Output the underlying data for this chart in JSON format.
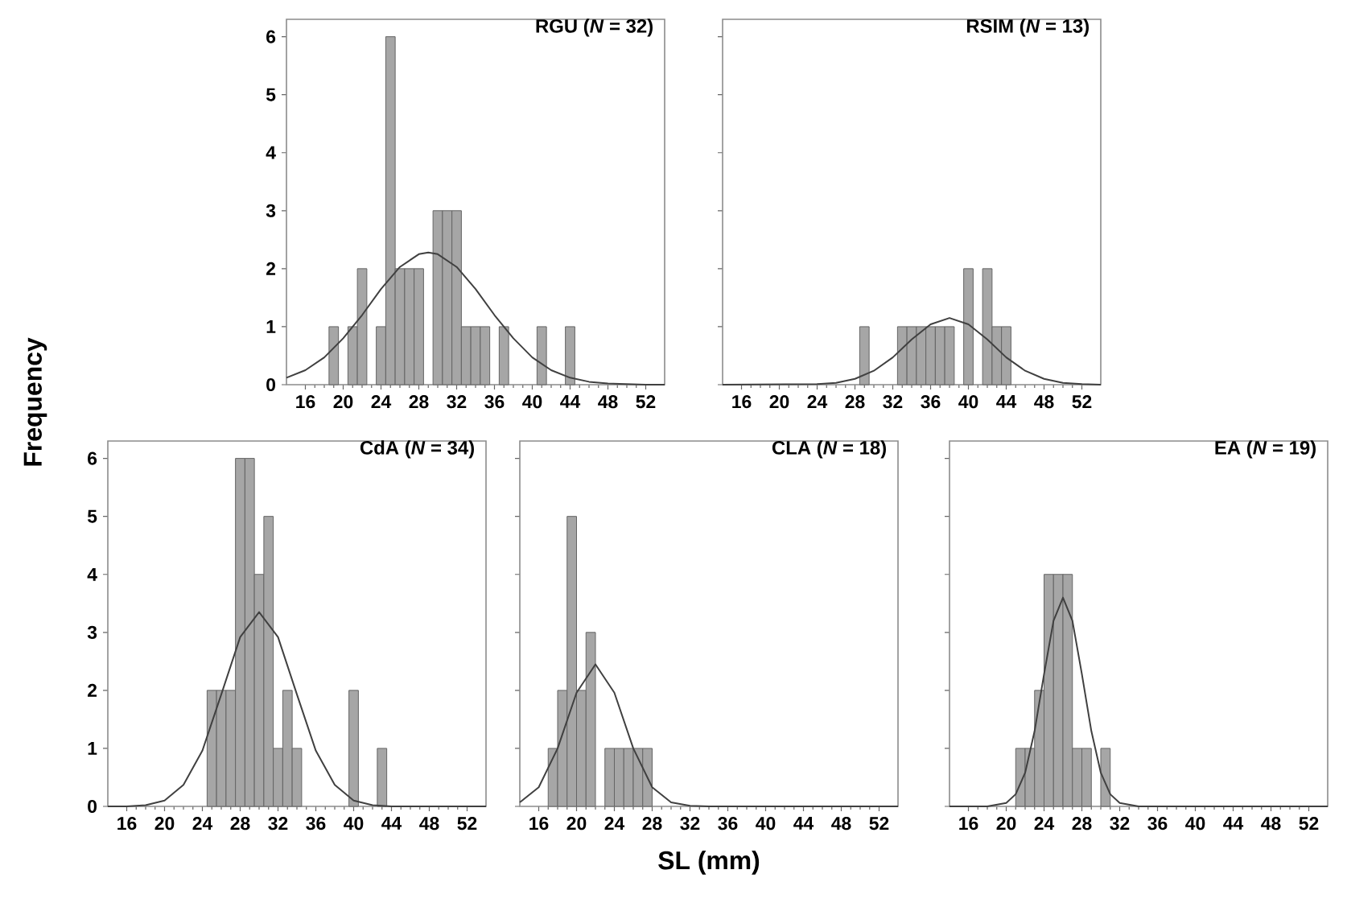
{
  "chart_data": [
    {
      "type": "histogram",
      "title": "RGU (*N* = 32)",
      "bins": [
        18.5,
        19.5,
        20.5,
        21.5,
        22.5,
        23.5,
        24.5,
        25.5,
        26.5,
        27.5,
        28.5,
        29.5,
        30.5,
        31.5,
        32.5,
        33.5,
        34.5,
        35.5,
        36.5,
        37.5,
        38.5,
        39.5,
        40.5,
        41.5,
        42.5,
        43.5,
        44.5
      ],
      "values": [
        1,
        0,
        1,
        2,
        0,
        1,
        6,
        2,
        2,
        2,
        0,
        3,
        3,
        3,
        1,
        1,
        1,
        0,
        1,
        0,
        0,
        0,
        1,
        0,
        0,
        1
      ],
      "color": "#a6a6a6",
      "series": [
        {
          "type": "line",
          "color": "#404040",
          "x": [
            14,
            16,
            18,
            20,
            22,
            24,
            26,
            28,
            29,
            30,
            32,
            34,
            36,
            38,
            40,
            42,
            44,
            46,
            48,
            52,
            54
          ],
          "values": [
            0.12,
            0.25,
            0.47,
            0.8,
            1.2,
            1.65,
            2.03,
            2.25,
            2.28,
            2.25,
            2.03,
            1.65,
            1.2,
            0.8,
            0.47,
            0.25,
            0.12,
            0.05,
            0.02,
            0,
            0
          ]
        }
      ],
      "xlim": [
        14,
        54
      ],
      "ylim": [
        0,
        6.3
      ],
      "xticks": [
        16,
        20,
        24,
        28,
        32,
        36,
        40,
        44,
        48,
        52
      ],
      "yticks": [
        0,
        1,
        2,
        3,
        4,
        5,
        6
      ]
    },
    {
      "type": "histogram",
      "title": "RSIM (*N* = 13)",
      "bins": [
        28.5,
        29.5,
        30.5,
        31.5,
        32.5,
        33.5,
        34.5,
        35.5,
        36.5,
        37.5,
        38.5,
        39.5,
        40.5,
        41.5,
        42.5,
        43.5,
        44.5
      ],
      "values": [
        1,
        0,
        0,
        0,
        1,
        1,
        1,
        1,
        1,
        1,
        0,
        2,
        0,
        2,
        1,
        1
      ],
      "color": "#a6a6a6",
      "series": [
        {
          "type": "line",
          "color": "#404040",
          "x": [
            14,
            24,
            26,
            28,
            30,
            32,
            34,
            36,
            38,
            40,
            42,
            44,
            46,
            48,
            50,
            52,
            54
          ],
          "values": [
            0,
            0.01,
            0.03,
            0.1,
            0.24,
            0.47,
            0.78,
            1.04,
            1.15,
            1.04,
            0.78,
            0.47,
            0.24,
            0.1,
            0.03,
            0.01,
            0
          ]
        }
      ],
      "xlim": [
        14,
        54
      ],
      "ylim": [
        0,
        6.3
      ],
      "xticks": [
        16,
        20,
        24,
        28,
        32,
        36,
        40,
        44,
        48,
        52
      ],
      "yticks": [
        0,
        1,
        2,
        3,
        4,
        5,
        6
      ],
      "tick_labels": "x"
    },
    {
      "type": "histogram",
      "title": "CdA (*N* = 34)",
      "ylabel": "Frequency",
      "bins": [
        24.5,
        25.5,
        26.5,
        27.5,
        28.5,
        29.5,
        30.5,
        31.5,
        32.5,
        33.5,
        34.5,
        35.5,
        36.5,
        37.5,
        38.5,
        39.5,
        40.5,
        41.5,
        42.5,
        43.5
      ],
      "values": [
        2,
        2,
        2,
        6,
        6,
        4,
        5,
        1,
        2,
        1,
        0,
        0,
        0,
        0,
        0,
        2,
        0,
        0,
        1
      ],
      "color": "#a6a6a6",
      "series": [
        {
          "type": "line",
          "color": "#404040",
          "x": [
            14,
            16,
            18,
            20,
            22,
            24,
            26,
            28,
            30,
            32,
            34,
            36,
            38,
            40,
            42,
            44,
            54
          ],
          "values": [
            0,
            0,
            0.02,
            0.1,
            0.37,
            0.96,
            1.93,
            2.92,
            3.35,
            2.92,
            1.93,
            0.96,
            0.37,
            0.1,
            0.02,
            0,
            0
          ]
        }
      ],
      "xlim": [
        14,
        54
      ],
      "ylim": [
        0,
        6.3
      ],
      "xticks": [
        16,
        20,
        24,
        28,
        32,
        36,
        40,
        44,
        48,
        52
      ],
      "yticks": [
        0,
        1,
        2,
        3,
        4,
        5,
        6
      ]
    },
    {
      "type": "histogram",
      "title": "CLA (*N* = 18)",
      "xlabel": "SL (mm)",
      "bins": [
        17,
        18,
        19,
        20,
        21,
        22,
        23,
        24,
        25,
        26,
        27,
        28
      ],
      "values": [
        1,
        2,
        5,
        2,
        3,
        0,
        1,
        1,
        1,
        1,
        1
      ],
      "color": "#a6a6a6",
      "series": [
        {
          "type": "line",
          "color": "#404040",
          "x": [
            14,
            16,
            18,
            20,
            22,
            24,
            26,
            28,
            30,
            32,
            34,
            54
          ],
          "values": [
            0.07,
            0.33,
            1.0,
            1.96,
            2.45,
            1.96,
            1.0,
            0.33,
            0.07,
            0.01,
            0,
            0
          ]
        }
      ],
      "xlim": [
        14,
        54
      ],
      "ylim": [
        0,
        6.3
      ],
      "xticks": [
        16,
        20,
        24,
        28,
        32,
        36,
        40,
        44,
        48,
        52
      ],
      "yticks": [
        0,
        1,
        2,
        3,
        4,
        5,
        6
      ],
      "tick_labels": "x"
    },
    {
      "type": "histogram",
      "title": "EA (*N* = 19)",
      "bins": [
        21,
        22,
        23,
        24,
        25,
        26,
        27,
        28,
        29,
        30,
        31
      ],
      "values": [
        1,
        1,
        2,
        4,
        4,
        4,
        1,
        1,
        0,
        1
      ],
      "color": "#a6a6a6",
      "series": [
        {
          "type": "line",
          "color": "#404040",
          "x": [
            14,
            18,
            20,
            21,
            22,
            23,
            24,
            25,
            26,
            27,
            28,
            29,
            30,
            31,
            32,
            34,
            54
          ],
          "values": [
            0,
            0,
            0.06,
            0.21,
            0.58,
            1.3,
            2.28,
            3.2,
            3.6,
            3.2,
            2.28,
            1.3,
            0.58,
            0.21,
            0.06,
            0,
            0
          ]
        }
      ],
      "xlim": [
        14,
        54
      ],
      "ylim": [
        0,
        6.3
      ],
      "xticks": [
        16,
        20,
        24,
        28,
        32,
        36,
        40,
        44,
        48,
        52
      ],
      "yticks": [
        0,
        1,
        2,
        3,
        4,
        5,
        6
      ],
      "tick_labels": "x"
    }
  ]
}
